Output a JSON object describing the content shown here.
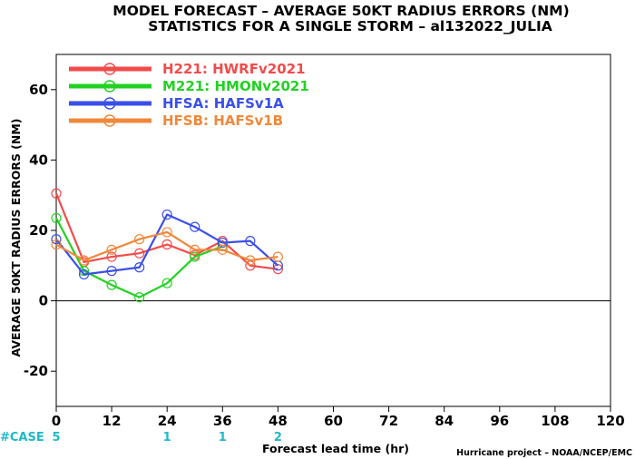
{
  "chart_data": {
    "type": "line",
    "title": "MODEL FORECAST – AVERAGE 50KT RADIUS ERRORS (NM)",
    "subtitle": "STATISTICS FOR A SINGLE STORM – al132022_JULIA",
    "xlabel": "Forecast lead time (hr)",
    "ylabel": "AVERAGE 50KT RADIUS ERRORS (NM)",
    "xlim": [
      0,
      120
    ],
    "ylim": [
      -30,
      70
    ],
    "xticks": [
      0,
      12,
      24,
      36,
      48,
      60,
      72,
      84,
      96,
      108,
      120
    ],
    "yticks": [
      -20,
      0,
      20,
      40,
      60
    ],
    "zero_line": true,
    "legend_position": "top-left",
    "x": [
      0,
      6,
      12,
      18,
      24,
      30,
      36,
      42,
      48
    ],
    "series": [
      {
        "name": "H221: HWRFv2021",
        "color": "#f24b4b",
        "values": [
          30.5,
          11.0,
          12.5,
          13.5,
          16.0,
          13.0,
          17.0,
          10.0,
          9.0
        ]
      },
      {
        "name": "M221: HMONv2021",
        "color": "#23d123",
        "values": [
          23.5,
          8.5,
          4.5,
          1.0,
          5.0,
          12.5,
          15.5,
          null,
          null
        ]
      },
      {
        "name": "HFSA: HAFSv1A",
        "color": "#3a4fe8",
        "values": [
          17.5,
          7.5,
          8.5,
          9.5,
          24.5,
          21.0,
          16.5,
          17.0,
          10.0
        ]
      },
      {
        "name": "HFSB: HAFSv1B",
        "color": "#f0883a",
        "values": [
          16.0,
          11.5,
          14.5,
          17.5,
          19.5,
          14.5,
          14.5,
          11.5,
          12.5
        ]
      }
    ],
    "case_label": "#CASE",
    "cases": [
      {
        "x": 0,
        "n": "5"
      },
      {
        "x": 24,
        "n": "1"
      },
      {
        "x": 36,
        "n": "1"
      },
      {
        "x": 48,
        "n": "2"
      }
    ],
    "credit": "Hurricane project – NOAA/NCEP/EMC"
  }
}
